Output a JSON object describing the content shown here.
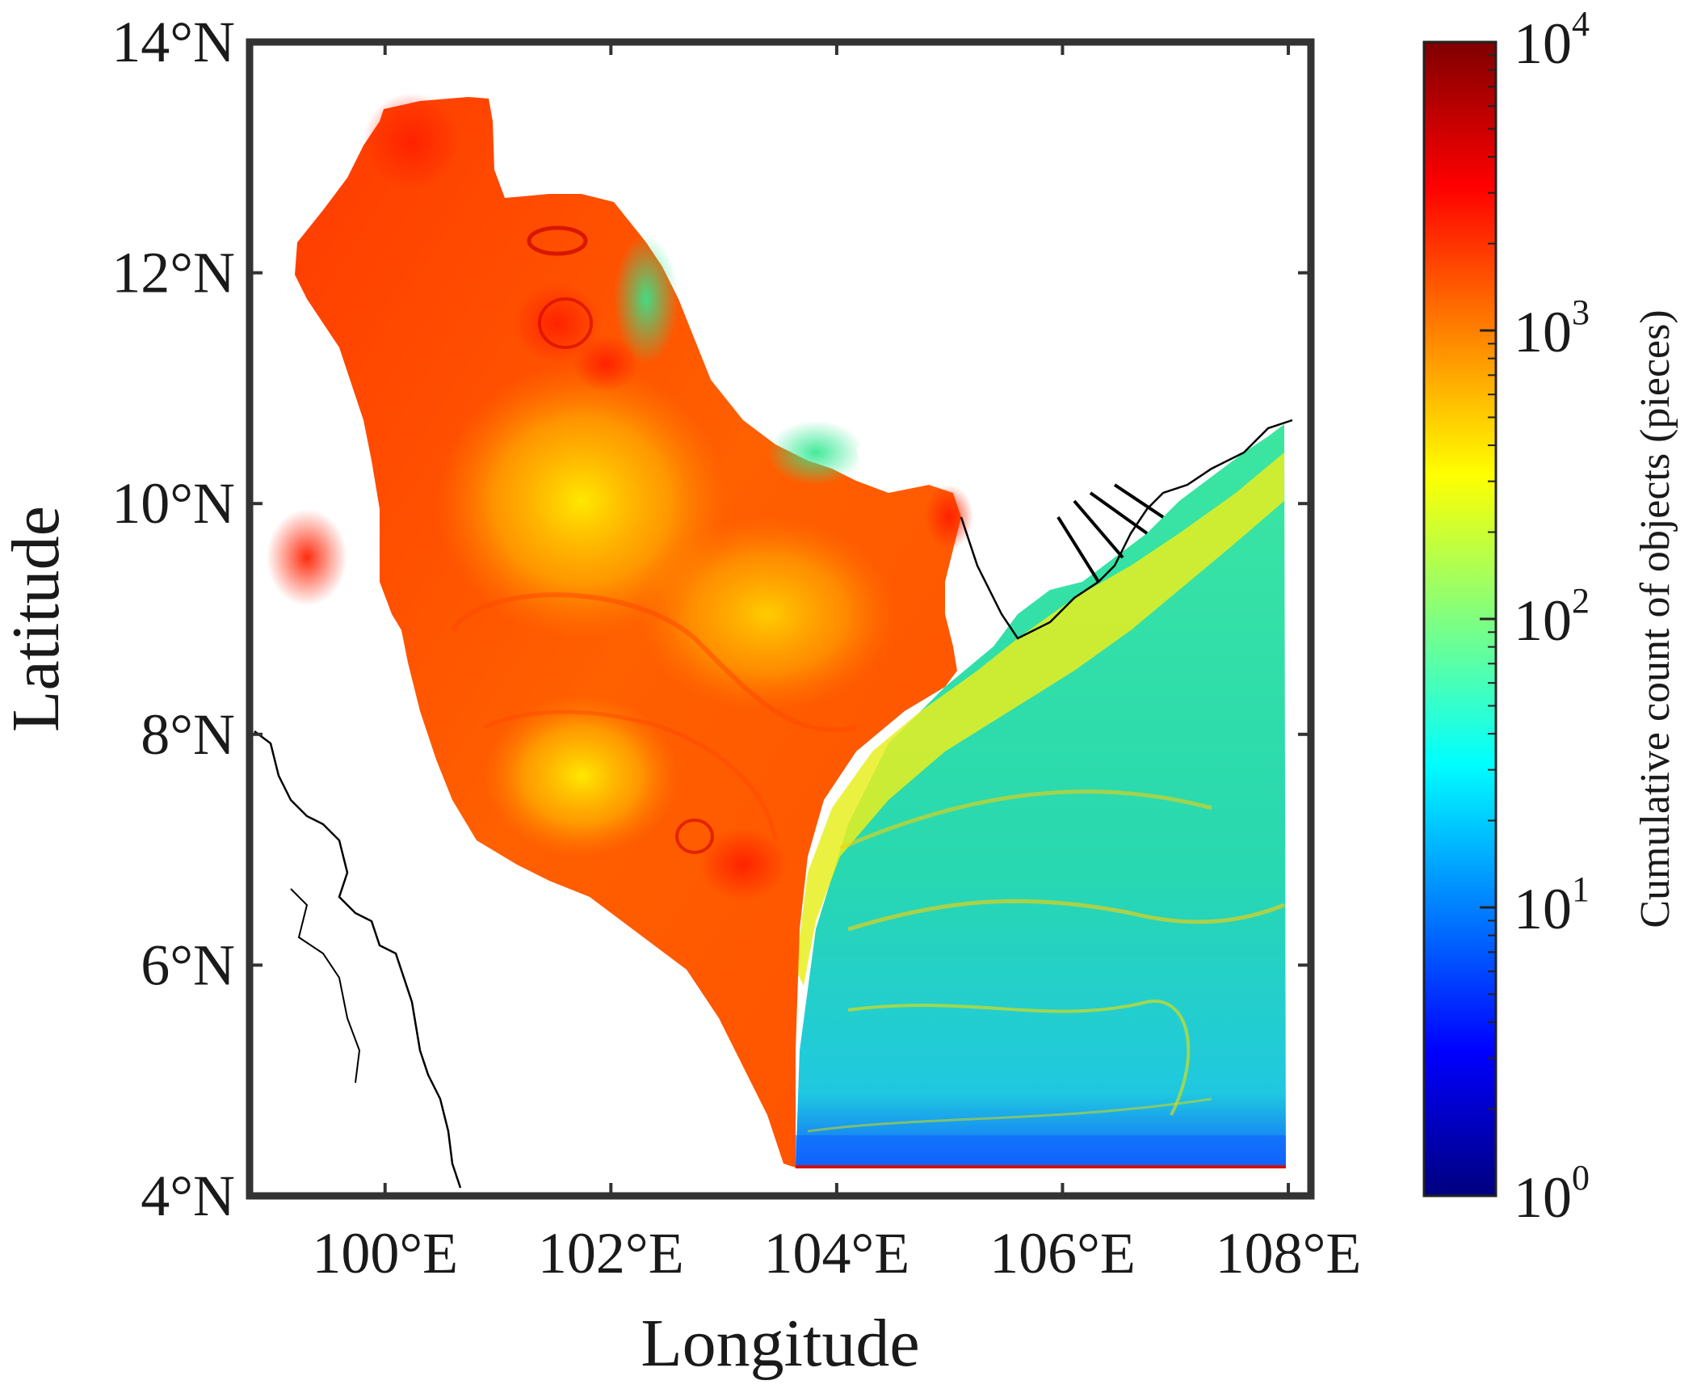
{
  "map": {
    "xlabel": "Longitude",
    "ylabel": "Latitude",
    "x_ticks": [
      {
        "value": 100,
        "label": "100°E"
      },
      {
        "value": 102,
        "label": "102°E"
      },
      {
        "value": 104,
        "label": "104°E"
      },
      {
        "value": 106,
        "label": "106°E"
      },
      {
        "value": 108,
        "label": "108°E"
      }
    ],
    "y_ticks": [
      {
        "value": 4,
        "label": "4°N"
      },
      {
        "value": 6,
        "label": "6°N"
      },
      {
        "value": 8,
        "label": "8°N"
      },
      {
        "value": 10,
        "label": "10°N"
      },
      {
        "value": 12,
        "label": "12°N"
      },
      {
        "value": 14,
        "label": "14°N"
      }
    ],
    "lon_range": [
      98.8,
      108.2
    ],
    "lat_range": [
      4,
      14
    ],
    "colorbar": {
      "title": "Cumulative count of objects (pieces)",
      "scale": "log",
      "range": [
        1,
        10000
      ],
      "ticks": [
        {
          "base": "10",
          "exp": "0",
          "value": 1
        },
        {
          "base": "10",
          "exp": "1",
          "value": 10
        },
        {
          "base": "10",
          "exp": "2",
          "value": 100
        },
        {
          "base": "10",
          "exp": "3",
          "value": 1000
        },
        {
          "base": "10",
          "exp": "4",
          "value": 10000
        }
      ],
      "colormap": "jet",
      "colors": [
        "#00007f",
        "#0000ff",
        "#0080ff",
        "#00ffff",
        "#80ff80",
        "#ffff00",
        "#ff8000",
        "#ff0000",
        "#7f0000"
      ]
    }
  }
}
